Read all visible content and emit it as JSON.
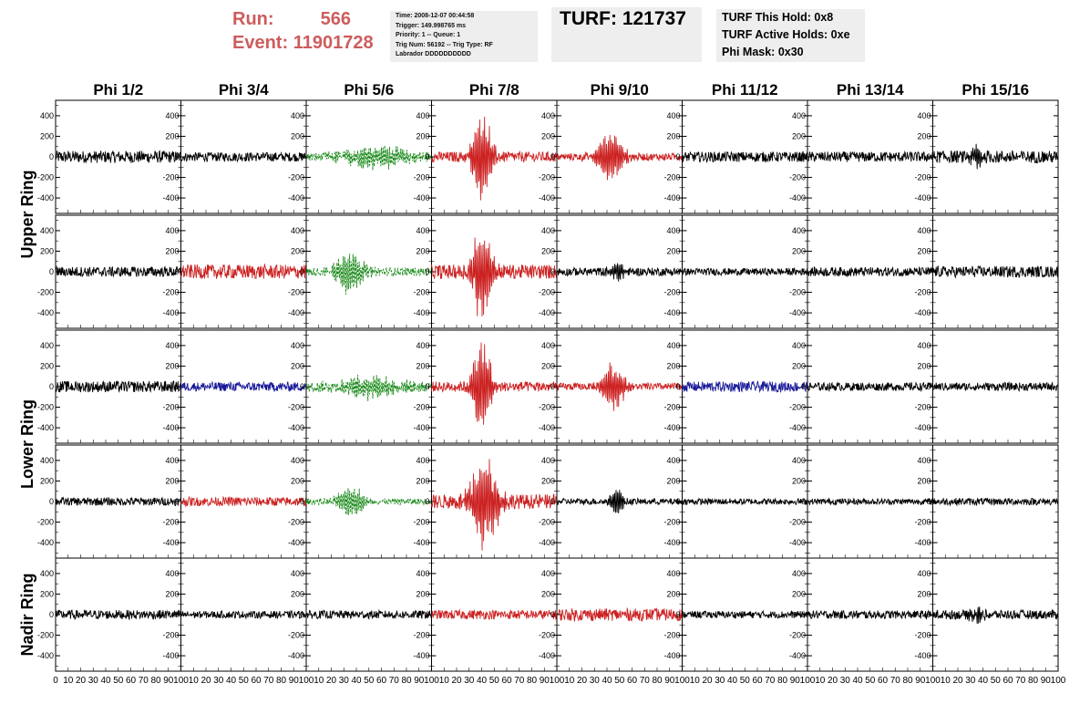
{
  "header": {
    "run_label": "Run:",
    "run_value": "566",
    "event_label": "Event:",
    "event_value": "11901728",
    "time_lines": [
      "Time: 2008-12-07 00:44:58",
      "Trigger: 149.998765 ms",
      "Priority: 1 -- Queue: 1",
      "Trig Num: 56192 -- Trig Type: RF",
      "Labrador DDDDDDDDDD"
    ],
    "turf": "TURF: 121737",
    "hold_lines": [
      "TURF This Hold: 0x8",
      "TURF Active Holds: 0xe",
      "Phi Mask: 0x30"
    ]
  },
  "colors": {
    "black": "#000000",
    "red": "#cc2222",
    "green": "#1a8a1a",
    "blue": "#1a1a99"
  },
  "chart_data": {
    "type": "line",
    "columns": [
      "Phi 1/2",
      "Phi 3/4",
      "Phi 5/6",
      "Phi 7/8",
      "Phi 9/10",
      "Phi 11/12",
      "Phi 13/14",
      "Phi 15/16"
    ],
    "ring_labels": [
      "Upper Ring",
      "Lower Ring",
      "Nadir Ring"
    ],
    "ylim": [
      -550,
      550
    ],
    "yticks": [
      -400,
      -200,
      0,
      200,
      400
    ],
    "ytick_labels": [
      "-400",
      "-200",
      "0",
      "200",
      "400"
    ],
    "xlim": [
      0,
      100
    ],
    "xticks": [
      0,
      10,
      20,
      30,
      40,
      50,
      60,
      70,
      80,
      90,
      100
    ],
    "xtick_labels": [
      "0",
      "10",
      "20",
      "30",
      "40",
      "50",
      "60",
      "70",
      "80",
      "90",
      "100"
    ],
    "rows": [
      [
        {
          "color": "black",
          "amp": 60,
          "peak_x": 0,
          "peak_amp": 0,
          "width": 0,
          "dashed": false
        },
        {
          "color": "black",
          "amp": 45,
          "peak_x": 0,
          "peak_amp": 0,
          "width": 0,
          "dashed": false
        },
        {
          "color": "green",
          "amp": 40,
          "peak_x": 55,
          "peak_amp": 110,
          "width": 30,
          "dashed": true
        },
        {
          "color": "red",
          "amp": 50,
          "peak_x": 40,
          "peak_amp": 500,
          "width": 8,
          "dashed": false
        },
        {
          "color": "red",
          "amp": 35,
          "peak_x": 42,
          "peak_amp": 250,
          "width": 12,
          "dashed": false
        },
        {
          "color": "black",
          "amp": 50,
          "peak_x": 0,
          "peak_amp": 0,
          "width": 0,
          "dashed": false
        },
        {
          "color": "black",
          "amp": 50,
          "peak_x": 0,
          "peak_amp": 0,
          "width": 0,
          "dashed": false
        },
        {
          "color": "black",
          "amp": 60,
          "peak_x": 35,
          "peak_amp": 110,
          "width": 6,
          "dashed": false
        }
      ],
      [
        {
          "color": "black",
          "amp": 50,
          "peak_x": 0,
          "peak_amp": 0,
          "width": 0,
          "dashed": false
        },
        {
          "color": "red",
          "amp": 70,
          "peak_x": 0,
          "peak_amp": 0,
          "width": 0,
          "dashed": false
        },
        {
          "color": "green",
          "amp": 40,
          "peak_x": 35,
          "peak_amp": 230,
          "width": 12,
          "dashed": true
        },
        {
          "color": "red",
          "amp": 70,
          "peak_x": 40,
          "peak_amp": 500,
          "width": 8,
          "dashed": false
        },
        {
          "color": "black",
          "amp": 40,
          "peak_x": 48,
          "peak_amp": 110,
          "width": 6,
          "dashed": false
        },
        {
          "color": "black",
          "amp": 35,
          "peak_x": 0,
          "peak_amp": 0,
          "width": 0,
          "dashed": false
        },
        {
          "color": "black",
          "amp": 45,
          "peak_x": 0,
          "peak_amp": 0,
          "width": 0,
          "dashed": false
        },
        {
          "color": "black",
          "amp": 55,
          "peak_x": 0,
          "peak_amp": 0,
          "width": 0,
          "dashed": false
        }
      ],
      [
        {
          "color": "black",
          "amp": 55,
          "peak_x": 0,
          "peak_amp": 0,
          "width": 0,
          "dashed": false
        },
        {
          "color": "blue",
          "amp": 45,
          "peak_x": 0,
          "peak_amp": 0,
          "width": 0,
          "dashed": false
        },
        {
          "color": "green",
          "amp": 50,
          "peak_x": 50,
          "peak_amp": 110,
          "width": 25,
          "dashed": true
        },
        {
          "color": "red",
          "amp": 50,
          "peak_x": 40,
          "peak_amp": 500,
          "width": 8,
          "dashed": false
        },
        {
          "color": "red",
          "amp": 35,
          "peak_x": 45,
          "peak_amp": 230,
          "width": 10,
          "dashed": false
        },
        {
          "color": "blue",
          "amp": 50,
          "peak_x": 0,
          "peak_amp": 0,
          "width": 0,
          "dashed": false
        },
        {
          "color": "black",
          "amp": 40,
          "peak_x": 0,
          "peak_amp": 0,
          "width": 0,
          "dashed": false
        },
        {
          "color": "black",
          "amp": 40,
          "peak_x": 0,
          "peak_amp": 0,
          "width": 0,
          "dashed": false
        }
      ],
      [
        {
          "color": "black",
          "amp": 40,
          "peak_x": 0,
          "peak_amp": 0,
          "width": 0,
          "dashed": false
        },
        {
          "color": "red",
          "amp": 45,
          "peak_x": 0,
          "peak_amp": 0,
          "width": 0,
          "dashed": false
        },
        {
          "color": "green",
          "amp": 30,
          "peak_x": 35,
          "peak_amp": 180,
          "width": 10,
          "dashed": true
        },
        {
          "color": "red",
          "amp": 70,
          "peak_x": 42,
          "peak_amp": 450,
          "width": 12,
          "dashed": false
        },
        {
          "color": "black",
          "amp": 30,
          "peak_x": 48,
          "peak_amp": 160,
          "width": 5,
          "dashed": false
        },
        {
          "color": "black",
          "amp": 30,
          "peak_x": 0,
          "peak_amp": 0,
          "width": 0,
          "dashed": false
        },
        {
          "color": "black",
          "amp": 30,
          "peak_x": 0,
          "peak_amp": 0,
          "width": 0,
          "dashed": false
        },
        {
          "color": "black",
          "amp": 35,
          "peak_x": 0,
          "peak_amp": 0,
          "width": 0,
          "dashed": false
        }
      ],
      [
        {
          "color": "black",
          "amp": 45,
          "peak_x": 0,
          "peak_amp": 0,
          "width": 0,
          "dashed": false
        },
        {
          "color": "black",
          "amp": 35,
          "peak_x": 0,
          "peak_amp": 0,
          "width": 0,
          "dashed": false
        },
        {
          "color": "black",
          "amp": 40,
          "peak_x": 0,
          "peak_amp": 0,
          "width": 0,
          "dashed": false
        },
        {
          "color": "red",
          "amp": 45,
          "peak_x": 0,
          "peak_amp": 0,
          "width": 0,
          "dashed": false
        },
        {
          "color": "red",
          "amp": 60,
          "peak_x": 0,
          "peak_amp": 0,
          "width": 0,
          "dashed": false
        },
        {
          "color": "black",
          "amp": 35,
          "peak_x": 0,
          "peak_amp": 0,
          "width": 0,
          "dashed": false
        },
        {
          "color": "black",
          "amp": 40,
          "peak_x": 0,
          "peak_amp": 0,
          "width": 0,
          "dashed": false
        },
        {
          "color": "black",
          "amp": 45,
          "peak_x": 35,
          "peak_amp": 80,
          "width": 6,
          "dashed": false
        }
      ]
    ]
  }
}
